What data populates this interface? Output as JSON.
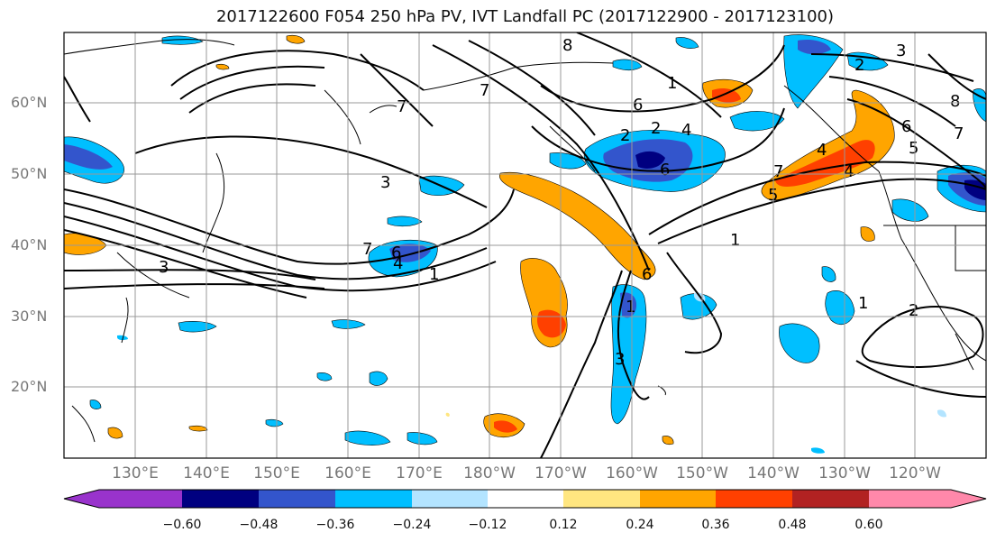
{
  "title": "2017122600 F054 250 hPa PV, IVT Landfall PC (2017122900 - 2017123100)",
  "map": {
    "lat_labels": [
      "60°N",
      "50°N",
      "40°N",
      "30°N",
      "20°N"
    ],
    "lon_labels": [
      "130°E",
      "140°E",
      "150°E",
      "160°E",
      "170°E",
      "180°W",
      "170°W",
      "160°W",
      "150°W",
      "140°W",
      "130°W",
      "120°W"
    ],
    "contour_labels": [
      "1",
      "2",
      "3",
      "4",
      "5",
      "6",
      "7",
      "8"
    ],
    "land_color": "#ffffff",
    "grid_color": "#999999"
  },
  "colorbar": {
    "ticks": [
      "−0.60",
      "−0.48",
      "−0.36",
      "−0.24",
      "−0.12",
      "0.12",
      "0.24",
      "0.36",
      "0.48",
      "0.60"
    ],
    "colors": [
      "#9933cc",
      "#000080",
      "#3355cc",
      "#00bfff",
      "#b3e4ff",
      "#ffffff",
      "#ffe680",
      "#ffa500",
      "#ff4000",
      "#b22222",
      "#ff88aa"
    ]
  }
}
